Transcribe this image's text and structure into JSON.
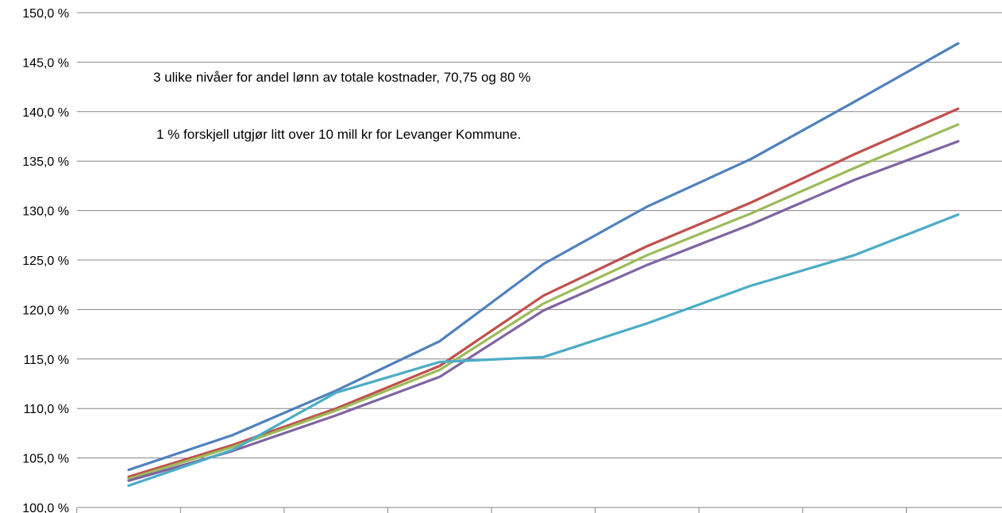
{
  "chart_data": {
    "type": "line",
    "title": "",
    "xlabel": "",
    "ylabel": "",
    "x": [
      1,
      2,
      3,
      4,
      5,
      6,
      7,
      8,
      9
    ],
    "ylim": [
      100,
      150
    ],
    "yticks": [
      100,
      105,
      110,
      115,
      120,
      125,
      130,
      135,
      140,
      145,
      150
    ],
    "ytick_labels": [
      "100,0 %",
      "105,0 %",
      "110,0 %",
      "115,0 %",
      "120,0 %",
      "125,0 %",
      "130,0 %",
      "135,0 %",
      "140,0 %",
      "145,0 %",
      "150,0 %"
    ],
    "grid": true,
    "legend": "none",
    "annotations": [
      "3 ulike nivåer for andel lønn av totale kostnader, 70,75 og 80 %",
      "1 % forskjell utgjør litt over 10 mill kr for Levanger Kommune."
    ],
    "series": [
      {
        "color": "#4F81BD",
        "values": [
          103.8,
          107.3,
          111.8,
          116.8,
          124.6,
          130.4,
          135.2,
          141.0,
          146.9
        ]
      },
      {
        "color": "#C0504D",
        "values": [
          103.1,
          106.3,
          110.0,
          114.3,
          121.4,
          126.4,
          130.8,
          135.7,
          140.3
        ]
      },
      {
        "color": "#9BBB59",
        "values": [
          102.9,
          106.1,
          109.8,
          113.9,
          120.6,
          125.5,
          129.7,
          134.3,
          138.7
        ]
      },
      {
        "color": "#8064A2",
        "values": [
          102.7,
          105.7,
          109.3,
          113.2,
          119.9,
          124.5,
          128.6,
          133.1,
          137.0
        ]
      },
      {
        "color": "#4BACC6",
        "values": [
          102.2,
          105.8,
          111.6,
          114.7,
          115.2,
          118.6,
          122.4,
          125.5,
          129.6
        ]
      }
    ]
  }
}
